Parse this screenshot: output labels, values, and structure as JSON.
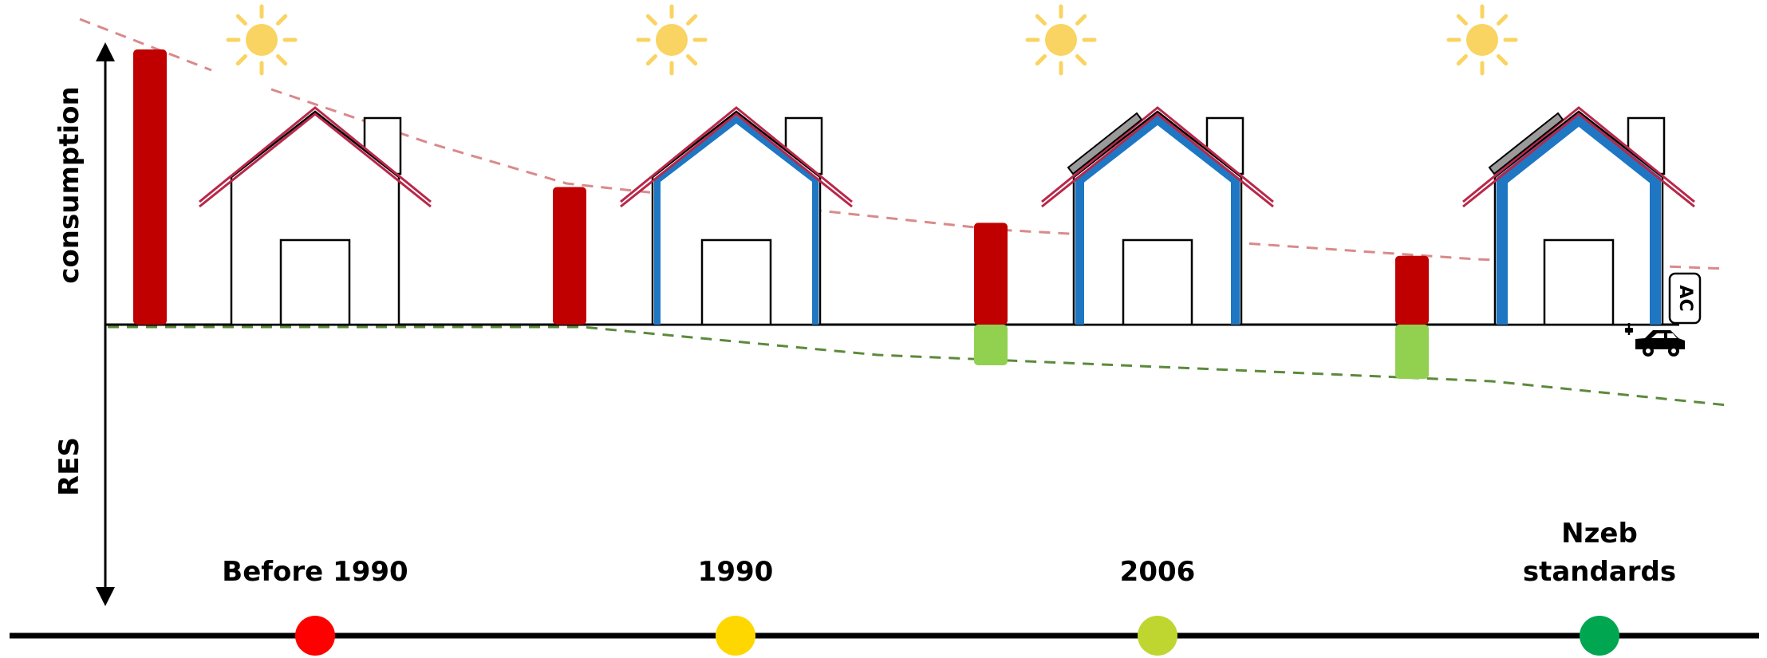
{
  "axes": {
    "y_upper_label": "consumption",
    "y_lower_label": "RES"
  },
  "eras": [
    {
      "label": [
        "Before 1990"
      ],
      "marker_color": "#ff0000",
      "insulation": false,
      "solar_panel": false,
      "consumption": 1.0,
      "res": 0.0
    },
    {
      "label": [
        "1990"
      ],
      "marker_color": "#ffd700",
      "insulation": true,
      "insulation_level": 1,
      "solar_panel": false,
      "consumption": 0.5,
      "res": 0.0
    },
    {
      "label": [
        "2006"
      ],
      "marker_color": "#c0d630",
      "insulation": true,
      "insulation_level": 2,
      "solar_panel": true,
      "consumption": 0.37,
      "res": 0.15
    },
    {
      "label": [
        "Nzeb",
        "standards"
      ],
      "marker_color": "#00a650",
      "insulation": true,
      "insulation_level": 3,
      "solar_panel": true,
      "consumption": 0.25,
      "res": 0.2
    }
  ],
  "extras": {
    "ac_label": "AC",
    "icons": [
      "sun-icon",
      "house-icon",
      "solar-panel-icon",
      "ac-unit-icon",
      "electric-car-icon"
    ]
  },
  "colors": {
    "consumption_bar": "#c00000",
    "res_bar": "#92d050",
    "roof": "#b8284a",
    "insulation": "#1f77c4",
    "sun": "#f9d462",
    "consumption_trend": "#d98a8a",
    "res_trend": "#5b8a3c",
    "timeline": "#000000"
  }
}
